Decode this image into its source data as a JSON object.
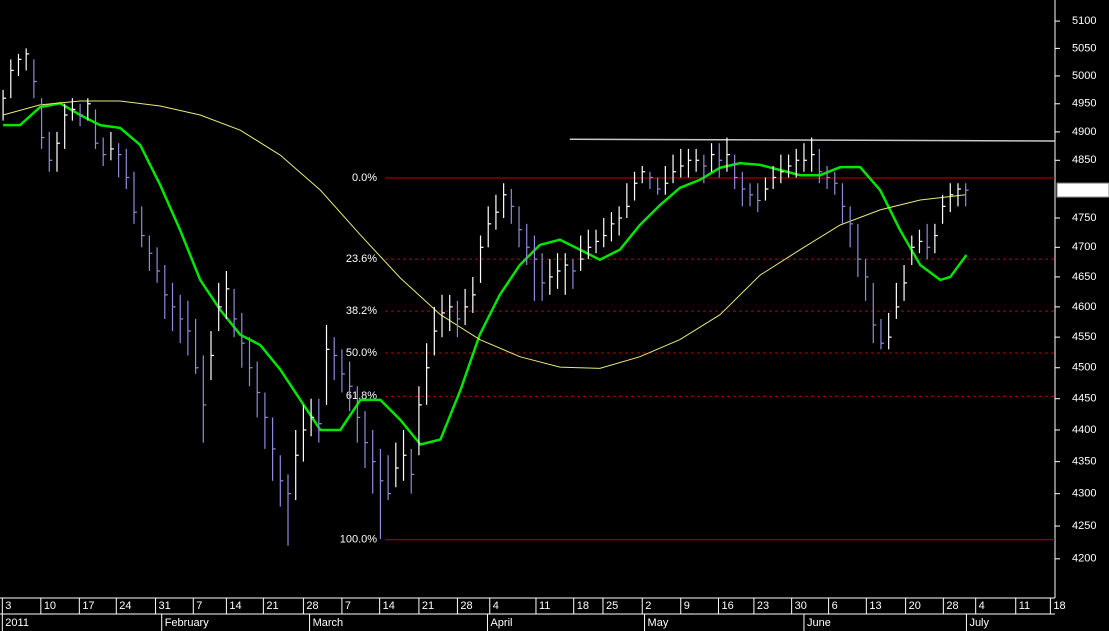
{
  "chart_data": {
    "type": "ohlc",
    "log_scale": true,
    "background": "#000000",
    "axis_color": "#ffffff",
    "xlim": [
      -0.4,
      136.6
    ],
    "ylim": [
      4141,
      5139
    ],
    "yticks": [
      4200,
      4250,
      4300,
      4350,
      4400,
      4450,
      4500,
      4550,
      4600,
      4650,
      4700,
      4750,
      4850,
      4900,
      4950,
      5000,
      5050,
      5100
    ],
    "xticks": [
      {
        "value": -0.1,
        "label": "3"
      },
      {
        "value": 4.9,
        "label": "10"
      },
      {
        "value": 9.9,
        "label": "17"
      },
      {
        "value": 14.7,
        "label": "24"
      },
      {
        "value": 19.8,
        "label": "31"
      },
      {
        "value": 24.7,
        "label": "7"
      },
      {
        "value": 29.0,
        "label": "14"
      },
      {
        "value": 33.8,
        "label": "21"
      },
      {
        "value": 39.0,
        "label": "28"
      },
      {
        "value": 44.0,
        "label": "7"
      },
      {
        "value": 48.9,
        "label": "14"
      },
      {
        "value": 54.0,
        "label": "21"
      },
      {
        "value": 59.0,
        "label": "28"
      },
      {
        "value": 63.2,
        "label": "4"
      },
      {
        "value": 69.2,
        "label": "11"
      },
      {
        "value": 74.1,
        "label": "18"
      },
      {
        "value": 77.9,
        "label": "25"
      },
      {
        "value": 83.0,
        "label": "2"
      },
      {
        "value": 88.0,
        "label": "9"
      },
      {
        "value": 92.9,
        "label": "16"
      },
      {
        "value": 97.5,
        "label": "23"
      },
      {
        "value": 102.4,
        "label": "30"
      },
      {
        "value": 107.2,
        "label": "6"
      },
      {
        "value": 112.1,
        "label": "13"
      },
      {
        "value": 117.2,
        "label": "20"
      },
      {
        "value": 122.1,
        "label": "28"
      },
      {
        "value": 126.3,
        "label": "4"
      },
      {
        "value": 131.5,
        "label": "11"
      },
      {
        "value": 136.0,
        "label": "18"
      }
    ],
    "month_labels": [
      {
        "value": -0.1,
        "label": "2011"
      },
      {
        "value": 20.6,
        "label": "February"
      },
      {
        "value": 39.8,
        "label": "March"
      },
      {
        "value": 62.9,
        "label": "April"
      },
      {
        "value": 83.3,
        "label": "May"
      },
      {
        "value": 104.0,
        "label": "June"
      },
      {
        "value": 125.1,
        "label": "July"
      }
    ],
    "bars": {
      "up_color": "#ffffff",
      "down_color": "#8c8cd8",
      "close": [
        4960,
        5010,
        5030,
        5040,
        4990,
        4890,
        4850,
        4880,
        4930,
        4940,
        4930,
        4950,
        4880,
        4860,
        4870,
        4860,
        4820,
        4760,
        4720,
        4690,
        4660,
        4620,
        4600,
        4580,
        4560,
        4500,
        4440,
        4520,
        4600,
        4630,
        4580,
        4540,
        4500,
        4460,
        4420,
        4370,
        4320,
        4300,
        4360,
        4400,
        4420,
        4410,
        4530,
        4520,
        4490,
        4470,
        4420,
        4380,
        4350,
        4320,
        4300,
        4340,
        4360,
        4330,
        4440,
        4500,
        4560,
        4590,
        4600,
        4580,
        4600,
        4620,
        4700,
        4740,
        4760,
        4790,
        4770,
        4730,
        4700,
        4680,
        4640,
        4650,
        4660,
        4670,
        4660,
        4680,
        4700,
        4710,
        4720,
        4740,
        4750,
        4770,
        4810,
        4830,
        4820,
        4800,
        4810,
        4830,
        4840,
        4850,
        4850,
        4840,
        4860,
        4850,
        4860,
        4820,
        4800,
        4790,
        4780,
        4800,
        4820,
        4830,
        4840,
        4850,
        4850,
        4860,
        4830,
        4820,
        4810,
        4770,
        4740,
        4680,
        4650,
        4570,
        4540,
        4550,
        4600,
        4640,
        4700,
        4710,
        4700,
        4720,
        4770,
        4790,
        4800,
        4798.118
      ],
      "high": [
        4975,
        5030,
        5040,
        5050,
        5030,
        4960,
        4900,
        4900,
        4950,
        4960,
        4950,
        4960,
        4940,
        4890,
        4900,
        4880,
        4870,
        4830,
        4770,
        4720,
        4700,
        4670,
        4640,
        4620,
        4610,
        4580,
        4520,
        4560,
        4640,
        4660,
        4630,
        4590,
        4550,
        4510,
        4460,
        4420,
        4360,
        4330,
        4400,
        4440,
        4450,
        4450,
        4570,
        4550,
        4530,
        4510,
        4470,
        4430,
        4400,
        4370,
        4360,
        4380,
        4400,
        4370,
        4470,
        4540,
        4600,
        4620,
        4620,
        4610,
        4630,
        4650,
        4720,
        4770,
        4790,
        4810,
        4800,
        4770,
        4740,
        4720,
        4690,
        4680,
        4690,
        4690,
        4680,
        4720,
        4730,
        4730,
        4750,
        4760,
        4770,
        4810,
        4830,
        4840,
        4830,
        4820,
        4840,
        4860,
        4870,
        4870,
        4870,
        4860,
        4880,
        4880,
        4890,
        4860,
        4830,
        4810,
        4810,
        4820,
        4840,
        4860,
        4860,
        4870,
        4880,
        4890,
        4870,
        4840,
        4830,
        4810,
        4770,
        4740,
        4680,
        4640,
        4580,
        4590,
        4640,
        4670,
        4720,
        4730,
        4740,
        4740,
        4790,
        4810,
        4810,
        4810
      ],
      "low": [
        4920,
        4960,
        5000,
        5010,
        4960,
        4870,
        4830,
        4830,
        4870,
        4920,
        4910,
        4920,
        4870,
        4840,
        4850,
        4820,
        4800,
        4740,
        4700,
        4660,
        4640,
        4580,
        4560,
        4540,
        4520,
        4490,
        4380,
        4480,
        4560,
        4580,
        4550,
        4500,
        4470,
        4420,
        4370,
        4320,
        4280,
        4220,
        4290,
        4350,
        4390,
        4380,
        4440,
        4480,
        4460,
        4430,
        4380,
        4340,
        4300,
        4230,
        4290,
        4310,
        4320,
        4300,
        4360,
        4440,
        4520,
        4550,
        4560,
        4550,
        4570,
        4590,
        4640,
        4700,
        4730,
        4750,
        4740,
        4700,
        4670,
        4610,
        4610,
        4620,
        4630,
        4620,
        4630,
        4660,
        4680,
        4690,
        4700,
        4710,
        4720,
        4750,
        4780,
        4810,
        4800,
        4790,
        4790,
        4810,
        4820,
        4820,
        4830,
        4810,
        4830,
        4820,
        4830,
        4800,
        4770,
        4770,
        4760,
        4780,
        4800,
        4810,
        4820,
        4820,
        4830,
        4830,
        4810,
        4800,
        4790,
        4740,
        4700,
        4650,
        4610,
        4540,
        4530,
        4530,
        4580,
        4610,
        4670,
        4690,
        4680,
        4690,
        4740,
        4760,
        4770,
        4770
      ]
    },
    "lines": [
      {
        "color": "#00e600",
        "width": 2.5,
        "x": [
          0,
          2.2,
          4.8,
          7.4,
          10,
          12.6,
          15.2,
          17.8,
          20.4,
          23,
          25.6,
          28.2,
          30.8,
          33.4,
          36,
          38.6,
          41.2,
          43.8,
          46.4,
          49,
          51.6,
          54.2,
          56.8,
          59.4,
          61.9,
          64.5,
          67.1,
          69.7,
          72.3,
          74.9,
          77.5,
          80.1,
          82.7,
          85.3,
          87.9,
          90.5,
          93.1,
          95.7,
          98.3,
          100.9,
          103.5,
          106.1,
          108.7,
          111.3,
          113.9,
          116.5,
          119.1,
          121.7,
          123,
          125.1
        ],
        "values": [
          4912,
          4912,
          4944,
          4951,
          4930,
          4912,
          4907,
          4877,
          4807,
          4729,
          4645,
          4595,
          4554,
          4537,
          4497,
          4448,
          4400,
          4400,
          4448,
          4448,
          4416,
          4377,
          4385,
          4464,
          4554,
          4620,
          4670,
          4704,
          4713,
          4696,
          4679,
          4696,
          4738,
          4772,
          4802,
          4816,
          4837,
          4845,
          4842,
          4833,
          4824,
          4824,
          4838,
          4838,
          4798,
          4729,
          4670,
          4645,
          4650,
          4687
        ]
      },
      {
        "color": "#e8e87a",
        "width": 1,
        "x": [
          0,
          4.8,
          10,
          15.2,
          20.4,
          25.6,
          30.8,
          36,
          41.2,
          46.4,
          51.6,
          56.8,
          61.9,
          67.1,
          72.3,
          77.5,
          82.7,
          87.9,
          93.1,
          98.3,
          103.5,
          108.7,
          113.9,
          119.1,
          125
        ],
        "values": [
          4930,
          4948,
          4955,
          4955,
          4946,
          4930,
          4903,
          4859,
          4798,
          4721,
          4648,
          4587,
          4546,
          4518,
          4501,
          4499,
          4518,
          4546,
          4587,
          4653,
          4696,
          4738,
          4764,
          4781,
          4790
        ]
      }
    ],
    "resistance": {
      "color": "#c8c8c8",
      "x": [
        73.6,
        136.6
      ],
      "values": [
        4887,
        4884
      ]
    },
    "fib_color": "#c00000",
    "fib_label_color": "#f0f000",
    "fib_start": 49.6,
    "fib_levels": [
      {
        "value": 4819,
        "label": "0.0%",
        "dashed": false
      },
      {
        "value": 4680,
        "label": "23.6%",
        "dashed": true
      },
      {
        "value": 4593,
        "label": "38.2%",
        "dashed": true
      },
      {
        "value": 4524,
        "label": "50.0%",
        "dashed": true
      },
      {
        "value": 4454,
        "label": "61.8%",
        "dashed": true
      },
      {
        "value": 4229,
        "label": "100.0%",
        "dashed": false
      }
    ]
  }
}
